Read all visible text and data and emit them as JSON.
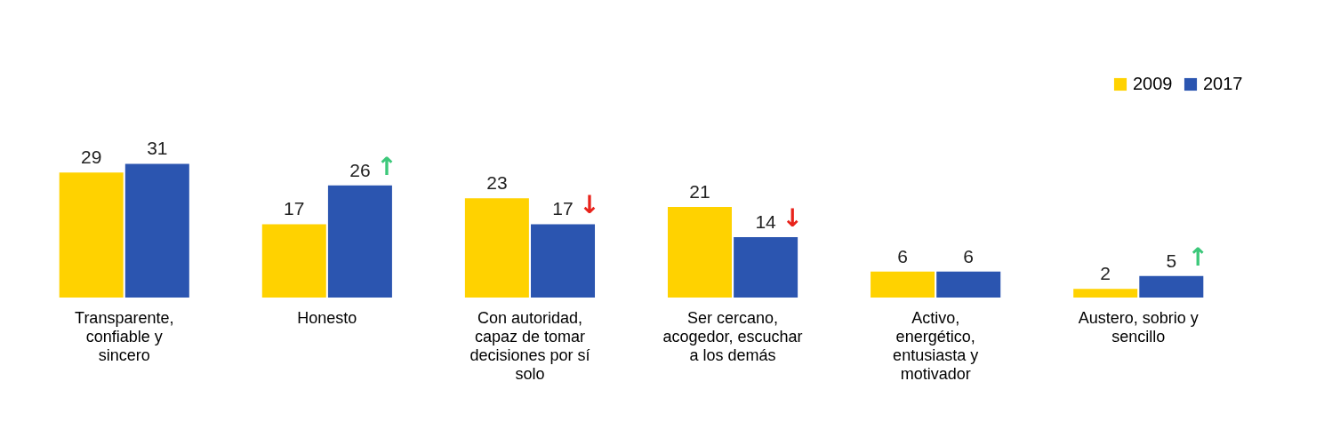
{
  "chart_data": {
    "type": "bar",
    "categories": [
      "Transparente, confiable y sincero",
      "Honesto",
      "Con autoridad, capaz de tomar decisiones por sí solo",
      "Ser cercano, acogedor, escuchar a los demás",
      "Activo, energético, entusiasta y motivador",
      "Austero, sobrio y sencillo"
    ],
    "series": [
      {
        "name": "2009",
        "color": "#ffd200",
        "values": [
          29,
          17,
          23,
          21,
          6,
          2
        ]
      },
      {
        "name": "2017",
        "color": "#2b55b0",
        "values": [
          31,
          26,
          17,
          14,
          6,
          5
        ]
      }
    ],
    "annotations": [
      {
        "text": "↑",
        "x": "Honesto",
        "y": 26
      },
      {
        "text": "↓",
        "x": "Con autoridad, capaz de tomar decisiones por sí solo",
        "y": 17
      },
      {
        "text": "↓",
        "x": "Ser cercano, acogedor, escuchar a los demás",
        "y": 14
      },
      {
        "text": "↑",
        "x": "Austero, sobrio y sencillo",
        "y": 5
      }
    ],
    "data_labels": true,
    "legend": "top right",
    "grid": false
  }
}
